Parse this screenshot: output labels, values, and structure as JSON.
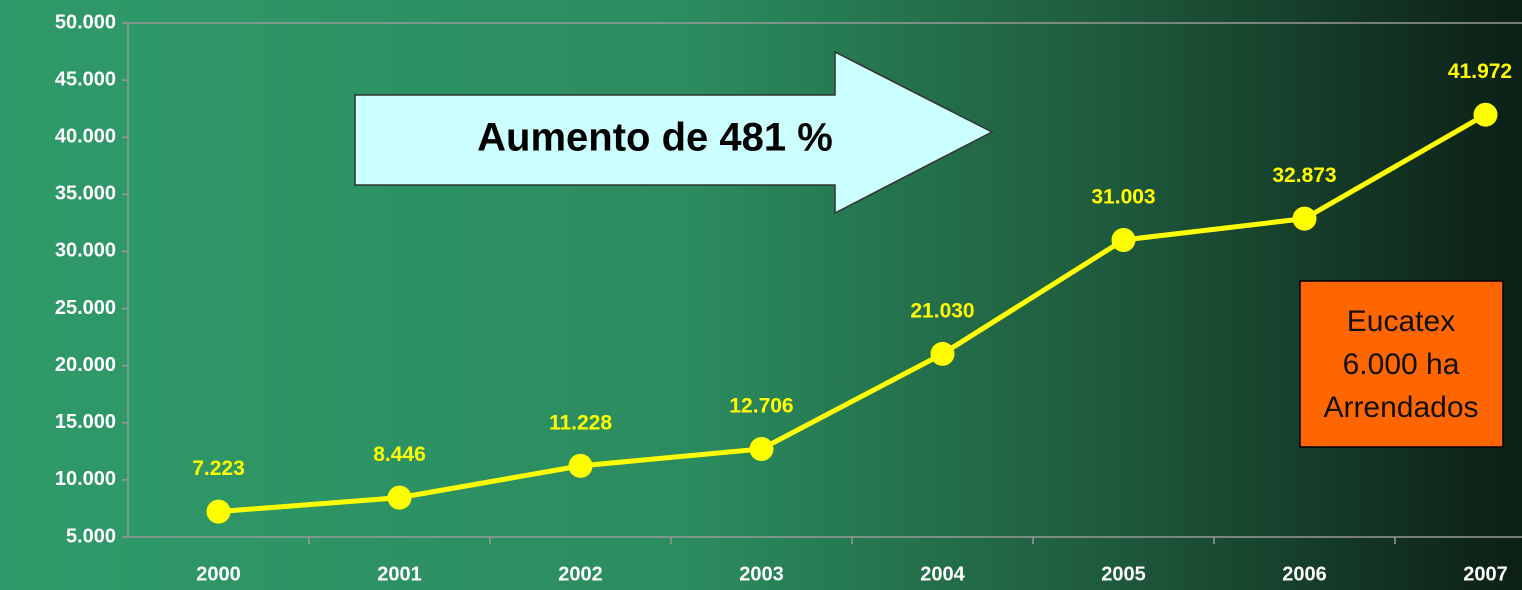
{
  "chart_data": {
    "type": "line",
    "categories": [
      "2000",
      "2001",
      "2002",
      "2003",
      "2004",
      "2005",
      "2006",
      "2007"
    ],
    "series": [
      {
        "color": "#ffff00",
        "values": [
          7223,
          8446,
          11228,
          12706,
          21030,
          31003,
          32873,
          41972
        ],
        "value_labels": [
          "7.223",
          "8.446",
          "11.228",
          "12.706",
          "21.030",
          "31.003",
          "32.873",
          "41.972"
        ]
      }
    ],
    "ylim": [
      5000,
      50000
    ],
    "yticks": [
      {
        "value": 5000,
        "label": "5.000"
      },
      {
        "value": 10000,
        "label": "10.000"
      },
      {
        "value": 15000,
        "label": "15.000"
      },
      {
        "value": 20000,
        "label": "20.000"
      },
      {
        "value": 25000,
        "label": "25.000"
      },
      {
        "value": 30000,
        "label": "30.000"
      },
      {
        "value": 35000,
        "label": "35.000"
      },
      {
        "value": 40000,
        "label": "40.000"
      },
      {
        "value": 45000,
        "label": "45.000"
      },
      {
        "value": 50000,
        "label": "50.000"
      }
    ],
    "annotations": [
      "Aumento de 481 %",
      "Eucatex",
      "6.000 ha",
      "Arrendados"
    ]
  }
}
